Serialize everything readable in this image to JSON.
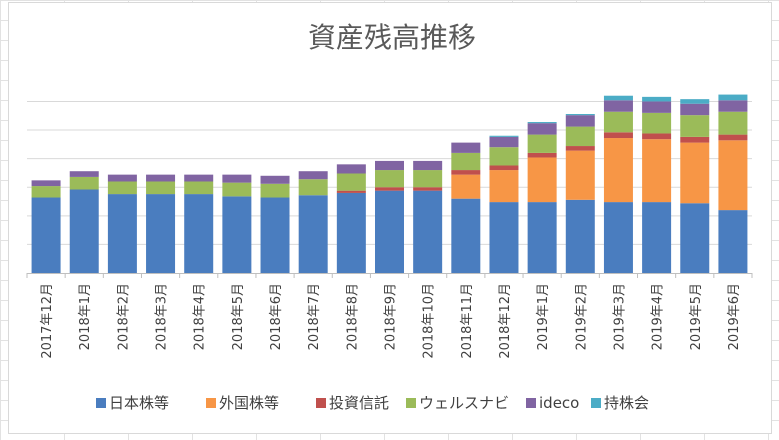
{
  "chart_data": {
    "type": "bar",
    "stacked": true,
    "title": "資産残高推移",
    "xlabel": "",
    "ylabel": "",
    "grid": true,
    "legend_position": "bottom",
    "categories": [
      "2017年12月",
      "2018年1月",
      "2018年2月",
      "2018年3月",
      "2018年4月",
      "2018年5月",
      "2018年6月",
      "2018年7月",
      "2018年8月",
      "2018年9月",
      "2018年10月",
      "2018年11月",
      "2018年12月",
      "2019年1月",
      "2019年2月",
      "2019年3月",
      "2019年4月",
      "2019年5月",
      "2019年6月"
    ],
    "series": [
      {
        "name": "日本株等",
        "color": "#4a7dbf",
        "values": [
          66,
          73,
          69,
          69,
          69,
          67,
          66,
          68,
          70,
          72,
          72,
          65,
          62,
          62,
          64,
          62,
          62,
          61,
          55
        ]
      },
      {
        "name": "外国株等",
        "color": "#f79646",
        "values": [
          0,
          0,
          0,
          0,
          0,
          0,
          0,
          0,
          0,
          0,
          0,
          21,
          28,
          39,
          43,
          56,
          55,
          53,
          61
        ]
      },
      {
        "name": "投資信託",
        "color": "#c0504d",
        "values": [
          0,
          0,
          0,
          0,
          0,
          0,
          0,
          0,
          2,
          3,
          3,
          4,
          4,
          4,
          4,
          5,
          5,
          5,
          5
        ]
      },
      {
        "name": "ウェルスナビ",
        "color": "#9bbb59",
        "values": [
          10,
          11,
          11,
          11,
          11,
          12,
          12,
          14,
          15,
          15,
          15,
          15,
          16,
          16,
          17,
          18,
          18,
          19,
          20
        ]
      },
      {
        "name": "ideco",
        "color": "#8064a2",
        "values": [
          5,
          5,
          6,
          6,
          6,
          7,
          7,
          7,
          8,
          8,
          8,
          9,
          9,
          10,
          10,
          10,
          10,
          10,
          10
        ]
      },
      {
        "name": "持株会",
        "color": "#4bacc6",
        "values": [
          0,
          0,
          0,
          0,
          0,
          0,
          0,
          0,
          0,
          0,
          0,
          0,
          1,
          1,
          1,
          4,
          4,
          4,
          5
        ]
      }
    ],
    "ylim": [
      0,
      160
    ],
    "gridline_step": 25
  }
}
